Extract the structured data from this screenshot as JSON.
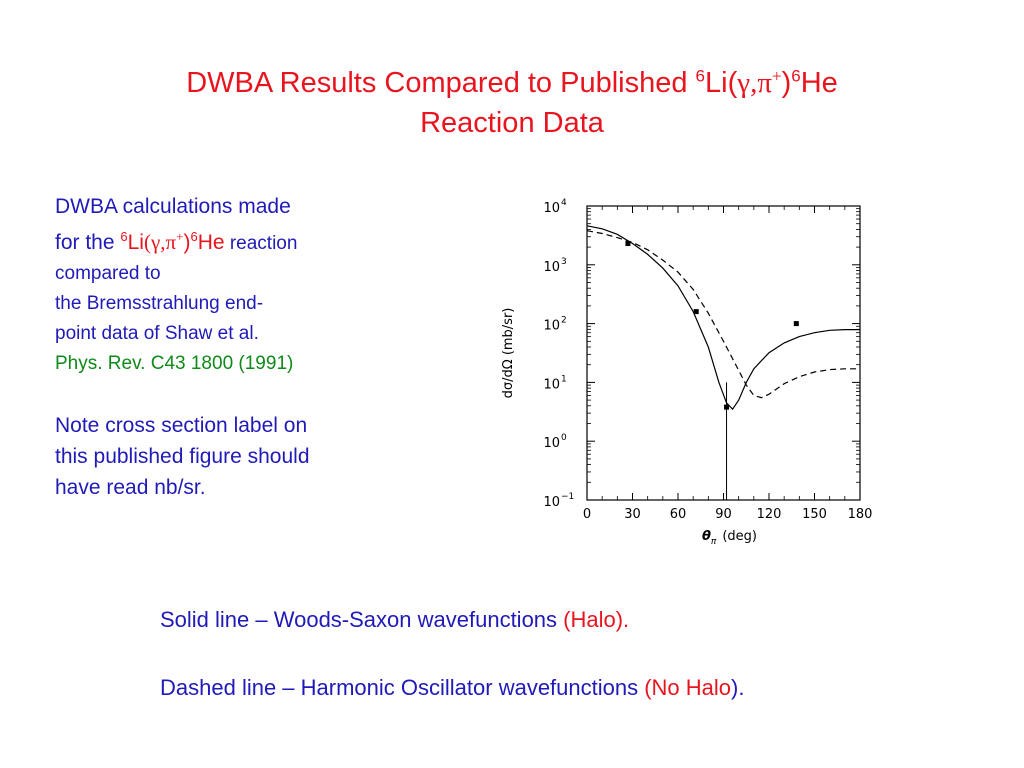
{
  "slide": {
    "title_line1_prefix": "DWBA Results Compared to Published ",
    "title_mass1": "6",
    "title_li": "Li(",
    "title_gamma": "γ,π",
    "title_plus": "+",
    "title_paren": ")",
    "title_mass2": "6",
    "title_he": "He",
    "title_line2": "Reaction Data"
  },
  "description": {
    "line1": "DWBA calculations made",
    "line2_prefix": "for the ",
    "mass1": "6",
    "li": "Li",
    "gamma": "(γ,π",
    "plus": "+",
    "close": ")",
    "mass2": "6",
    "he": "He",
    "reaction": " reaction",
    "line3": "compared to",
    "line4": "the Bremsstrahlung end-",
    "line5": "point data of Shaw et al.",
    "reference": "Phys. Rev. C43 1800 (1991)"
  },
  "note": {
    "line1": "Note cross section label on",
    "line2": "this published figure should",
    "line3": "have read nb/sr."
  },
  "legend": {
    "solid_text": "Solid line – Woods-Saxon wavefunctions ",
    "solid_tag": "(Halo).",
    "dashed_text": "Dashed line – Harmonic Oscillator wavefunctions ",
    "dashed_tag": "(No Halo",
    "dashed_end": ")."
  },
  "colors": {
    "title": "#e8141e",
    "body": "#1f1ab8",
    "reference": "#0f8a18"
  },
  "chart_data": {
    "type": "line",
    "xlabel_symbol": "θ",
    "xlabel_sub": "π",
    "xlabel_unit": "(deg)",
    "ylabel_symbol": "dσ/dΩ",
    "ylabel_unit": "(mb/sr)",
    "xlim": [
      0,
      180
    ],
    "ylim": [
      0.1,
      10000
    ],
    "yscale": "log",
    "x_ticks": [
      0,
      30,
      60,
      90,
      120,
      150,
      180
    ],
    "y_tick_exponents": [
      -1,
      0,
      1,
      2,
      3,
      4
    ],
    "y_tick_base": "10",
    "series": [
      {
        "style": "solid",
        "points": [
          [
            0,
            4600
          ],
          [
            10,
            4100
          ],
          [
            20,
            3300
          ],
          [
            30,
            2300
          ],
          [
            40,
            1500
          ],
          [
            50,
            880
          ],
          [
            60,
            440
          ],
          [
            70,
            160
          ],
          [
            80,
            40
          ],
          [
            87,
            10
          ],
          [
            92,
            4.5
          ],
          [
            96,
            3.5
          ],
          [
            100,
            5
          ],
          [
            105,
            10
          ],
          [
            110,
            17
          ],
          [
            120,
            32
          ],
          [
            130,
            47
          ],
          [
            140,
            60
          ],
          [
            150,
            70
          ],
          [
            160,
            77
          ],
          [
            170,
            79
          ],
          [
            180,
            79
          ]
        ]
      },
      {
        "style": "dashed",
        "points": [
          [
            0,
            3800
          ],
          [
            10,
            3400
          ],
          [
            20,
            2900
          ],
          [
            30,
            2400
          ],
          [
            40,
            1800
          ],
          [
            50,
            1200
          ],
          [
            60,
            750
          ],
          [
            70,
            380
          ],
          [
            80,
            150
          ],
          [
            90,
            50
          ],
          [
            100,
            16
          ],
          [
            105,
            9
          ],
          [
            110,
            6
          ],
          [
            115,
            5.5
          ],
          [
            120,
            6.3
          ],
          [
            130,
            9.5
          ],
          [
            140,
            12.5
          ],
          [
            150,
            15
          ],
          [
            160,
            16.5
          ],
          [
            170,
            17
          ],
          [
            180,
            17
          ]
        ]
      },
      {
        "style": "markers",
        "points": [
          [
            27,
            2300
          ],
          [
            72,
            160
          ],
          [
            92,
            3.8
          ],
          [
            138,
            100
          ]
        ],
        "error_bar": {
          "x": 92,
          "y": 3.8,
          "low": 0.1,
          "high": 10
        }
      }
    ]
  }
}
